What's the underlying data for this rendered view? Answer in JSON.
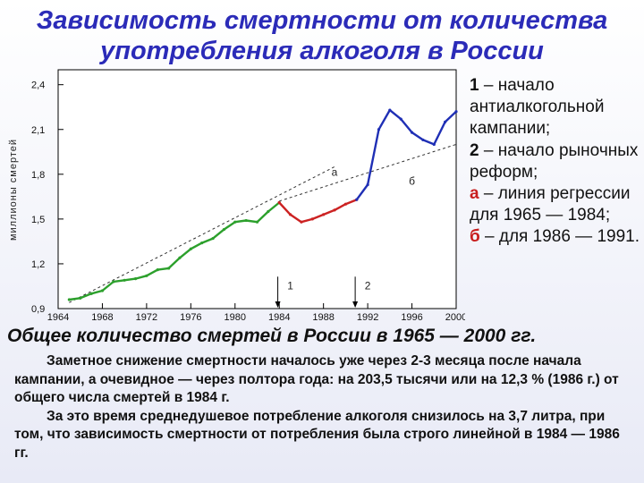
{
  "title_line1": "Зависимость смертности от количества",
  "title_line2": "употребления алкоголя в России",
  "legend": {
    "l1_num": "1",
    "l1_text": " – начало антиалкогольной кампании;",
    "l2_num": "2",
    "l2_text": " – начало рыночных реформ;",
    "la_num": "а",
    "la_text": " – линия регрессии для 1965 — 1984;",
    "lb_num": "б",
    "lb_text": " – для 1986 — 1991."
  },
  "subtitle": "Общее количество смертей в России в 1965 — 2000 гг.",
  "paragraph1": "Заметное снижение смертности началось уже через 2-3 месяца после начала кампании, а очевидное — через полтора года: на 203,5 тысячи или на 12,3 % (1986 г.) от общего числа смертей в 1984 г.",
  "paragraph2": "За это время среднедушевое потребление алкоголя снизилось на 3,7 литра, при том, что зависимость смертности от потребления была строго линейной в 1984 — 1986 гг.",
  "colors": {
    "green": "#2ca02c",
    "red": "#cc2222",
    "blue": "#1f2fb5",
    "title": "#2b2bb8"
  },
  "chart_data": {
    "type": "line",
    "ylabel": "миллионы смертей",
    "xlim": [
      1964,
      2000
    ],
    "ylim": [
      0.9,
      2.5
    ],
    "x_ticks": [
      "1964",
      "1968",
      "1972",
      "1976",
      "1980",
      "1984",
      "1988",
      "1992",
      "1996",
      "2000"
    ],
    "y_ticks": [
      "0,9",
      "1,2",
      "1,5",
      "1,8",
      "2,1",
      "2,4"
    ],
    "series": [
      {
        "color": "green",
        "x": [
          1965,
          1966,
          1967,
          1968,
          1969,
          1970,
          1971,
          1972,
          1973,
          1974,
          1975,
          1976,
          1977,
          1978,
          1979,
          1980,
          1981,
          1982,
          1983,
          1984
        ],
        "y": [
          0.96,
          0.97,
          1.0,
          1.02,
          1.08,
          1.09,
          1.1,
          1.12,
          1.16,
          1.17,
          1.24,
          1.3,
          1.34,
          1.37,
          1.43,
          1.48,
          1.49,
          1.48,
          1.55,
          1.61
        ]
      },
      {
        "color": "red",
        "x": [
          1984,
          1985,
          1986,
          1987,
          1988,
          1989,
          1990,
          1991
        ],
        "y": [
          1.61,
          1.53,
          1.48,
          1.5,
          1.53,
          1.56,
          1.6,
          1.63
        ]
      },
      {
        "color": "blue",
        "x": [
          1991,
          1992,
          1993,
          1994,
          1995,
          1996,
          1997,
          1998,
          1999,
          2000
        ],
        "y": [
          1.63,
          1.73,
          2.1,
          2.23,
          2.17,
          2.08,
          2.03,
          2.0,
          2.15,
          2.22
        ]
      }
    ],
    "regression_lines": [
      {
        "label": "а",
        "x": [
          1965,
          1989
        ],
        "y": [
          0.94,
          1.85
        ]
      },
      {
        "label": "б",
        "x": [
          1984,
          2000
        ],
        "y": [
          1.62,
          2.0
        ]
      }
    ],
    "annotations": [
      {
        "text": "1",
        "x": 1985,
        "y": 1.03,
        "arrow_from_y": 1.12
      },
      {
        "text": "2",
        "x": 1992,
        "y": 1.03,
        "arrow_from_y": 1.12
      },
      {
        "text": "а",
        "x": 1989,
        "y": 1.79
      },
      {
        "text": "б",
        "x": 1996,
        "y": 1.73
      }
    ]
  }
}
